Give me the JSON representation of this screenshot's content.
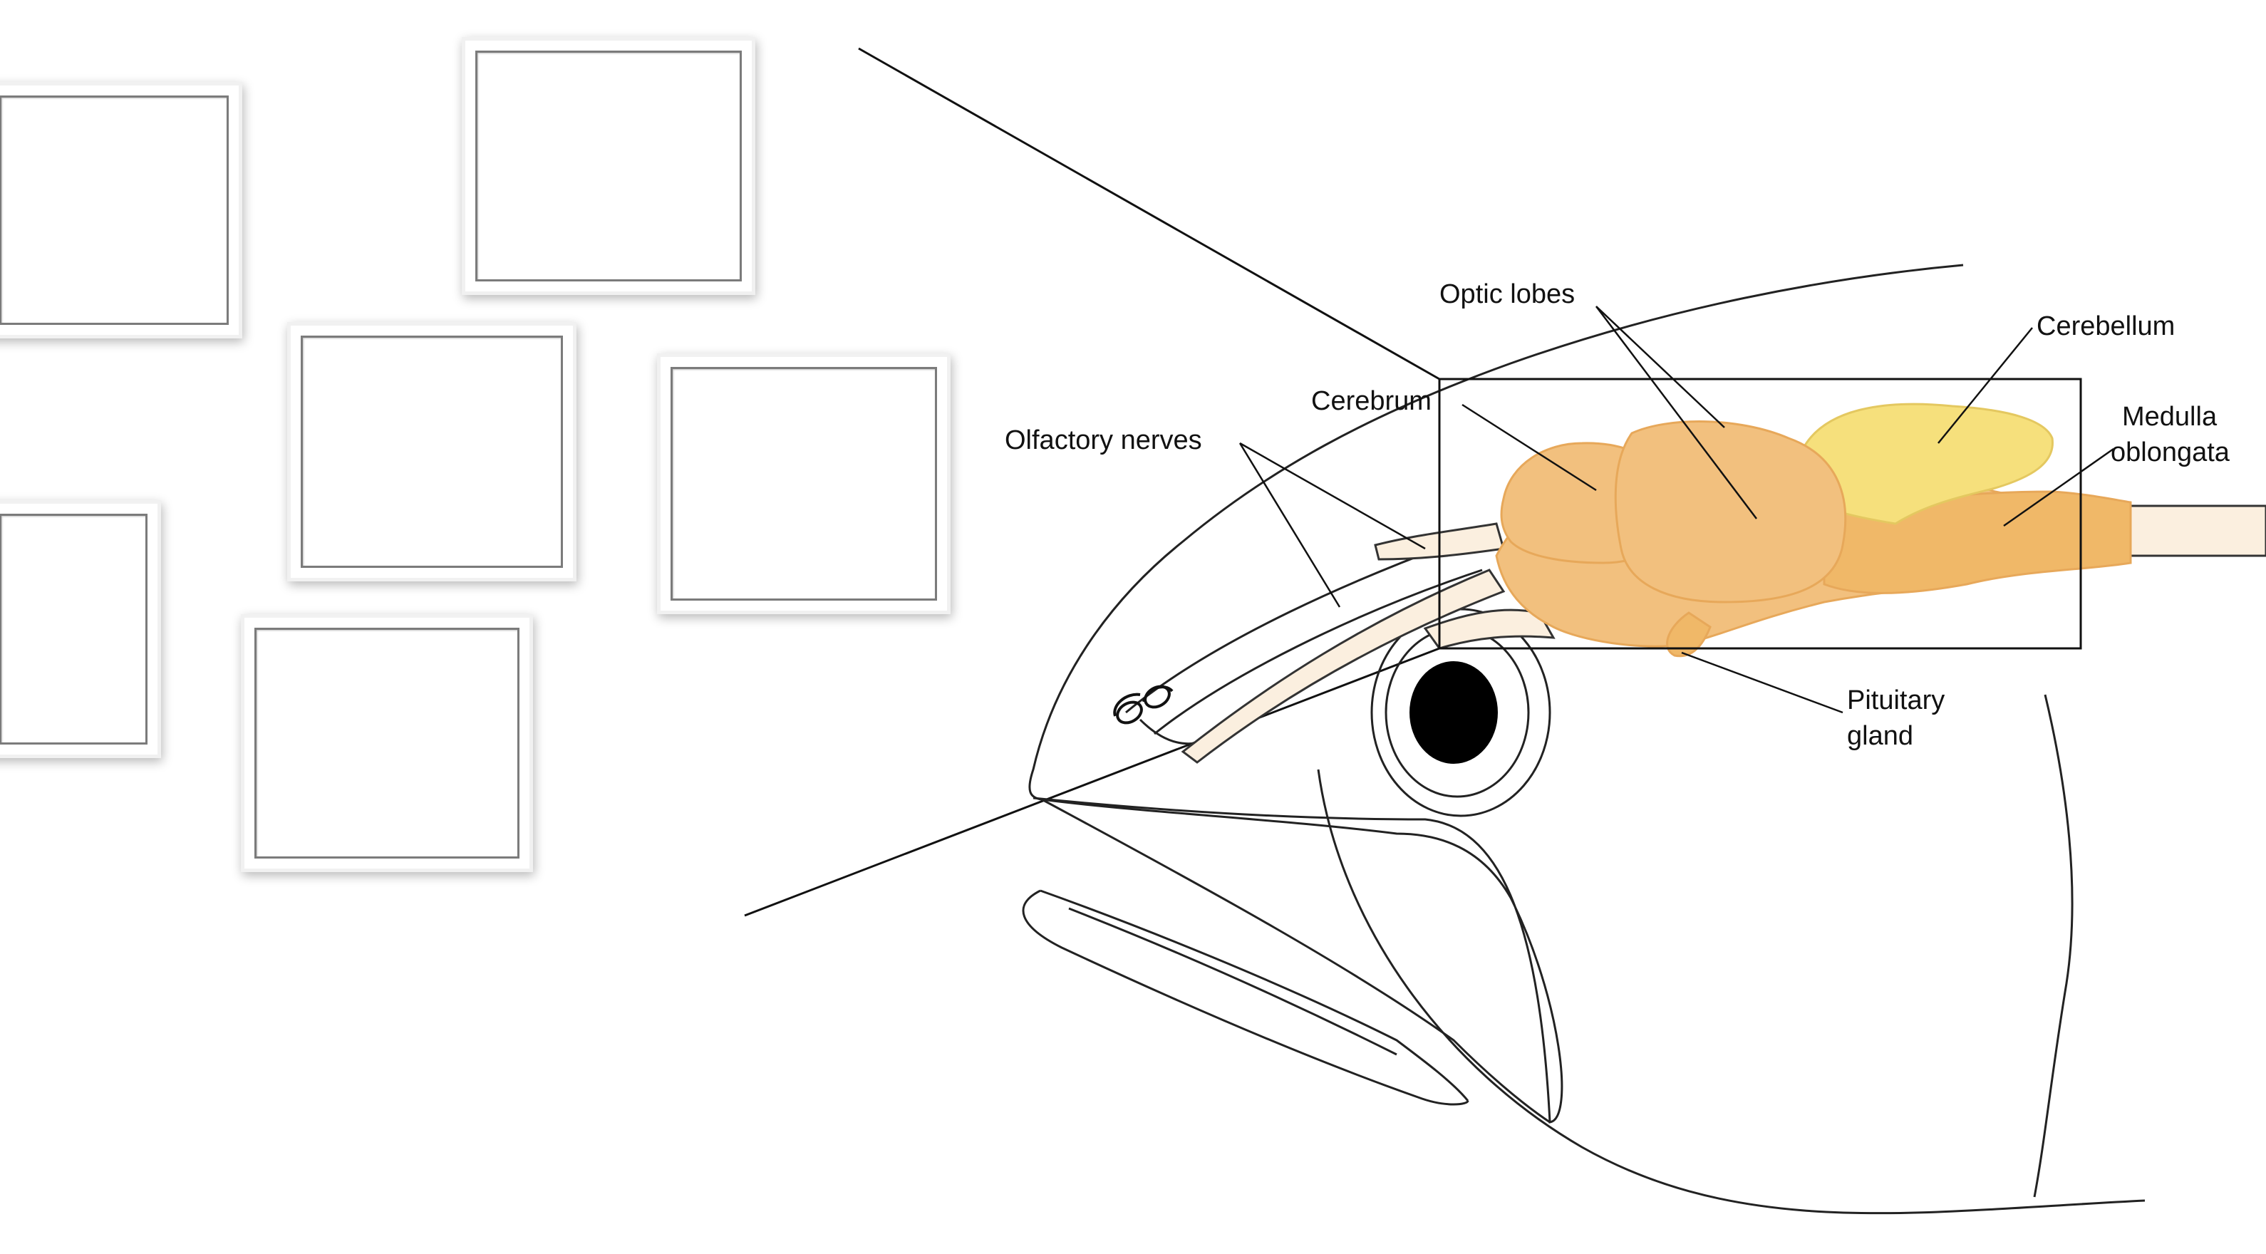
{
  "diagram": {
    "labels": {
      "olfactory_nerves": "Olfactory nerves",
      "cerebrum": "Cerebrum",
      "optic_lobes": "Optic lobes",
      "cerebellum": "Cerebellum",
      "medulla_line1": "Medulla",
      "medulla_line2": "oblongata",
      "pituitary_line1": "Pituitary",
      "pituitary_line2": "gland"
    },
    "colors": {
      "brain": "#f2c07e",
      "brain_outline": "#e7a85a",
      "cerebellum": "#f6e07c",
      "line": "#111111"
    }
  },
  "drop_zones": [
    {
      "label": ""
    },
    {
      "label": ""
    },
    {
      "label": ""
    },
    {
      "label": ""
    },
    {
      "label": ""
    },
    {
      "label": ""
    }
  ]
}
